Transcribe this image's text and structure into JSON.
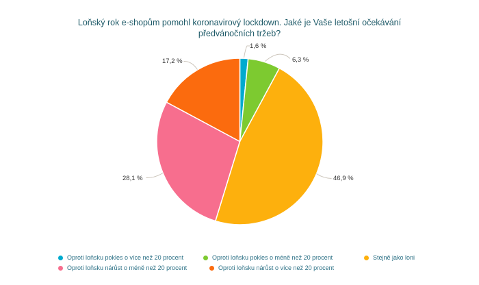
{
  "chart_data": {
    "type": "pie",
    "title": "Loňský rok e-shopům pomohl koronavirový lockdown. Jaké je Vaše letošní očekávání předvánočních tržeb?",
    "unit": "%",
    "start_angle_deg": 0,
    "direction": "clockwise",
    "legend_position": "bottom",
    "grid": false,
    "slices": [
      {
        "name": "Oproti loňsku pokles o více než 20 procent",
        "value": 1.6,
        "label": "1,6 %",
        "color": "#00aace"
      },
      {
        "name": "Oproti loňsku pokles o méně než 20 procent",
        "value": 6.3,
        "label": "6,3 %",
        "color": "#7dca30"
      },
      {
        "name": "Stejně jako loni",
        "value": 46.9,
        "label": "46,9 %",
        "color": "#fdb00d"
      },
      {
        "name": "Oproti loňsku nárůst o méně než 20 procent",
        "value": 28.1,
        "label": "28,1 %",
        "color": "#f76e8e"
      },
      {
        "name": "Oproti loňsku nárůst o více než 20 procent",
        "value": 17.2,
        "label": "17,2 %",
        "color": "#fb6b0e"
      }
    ]
  },
  "colors": {
    "title": "#1e5a68",
    "legend_text": "#2d7186",
    "data_label": "#333333",
    "connector": "#ccc5bb",
    "background": "#ffffff",
    "slice_border": "#ffffff"
  }
}
